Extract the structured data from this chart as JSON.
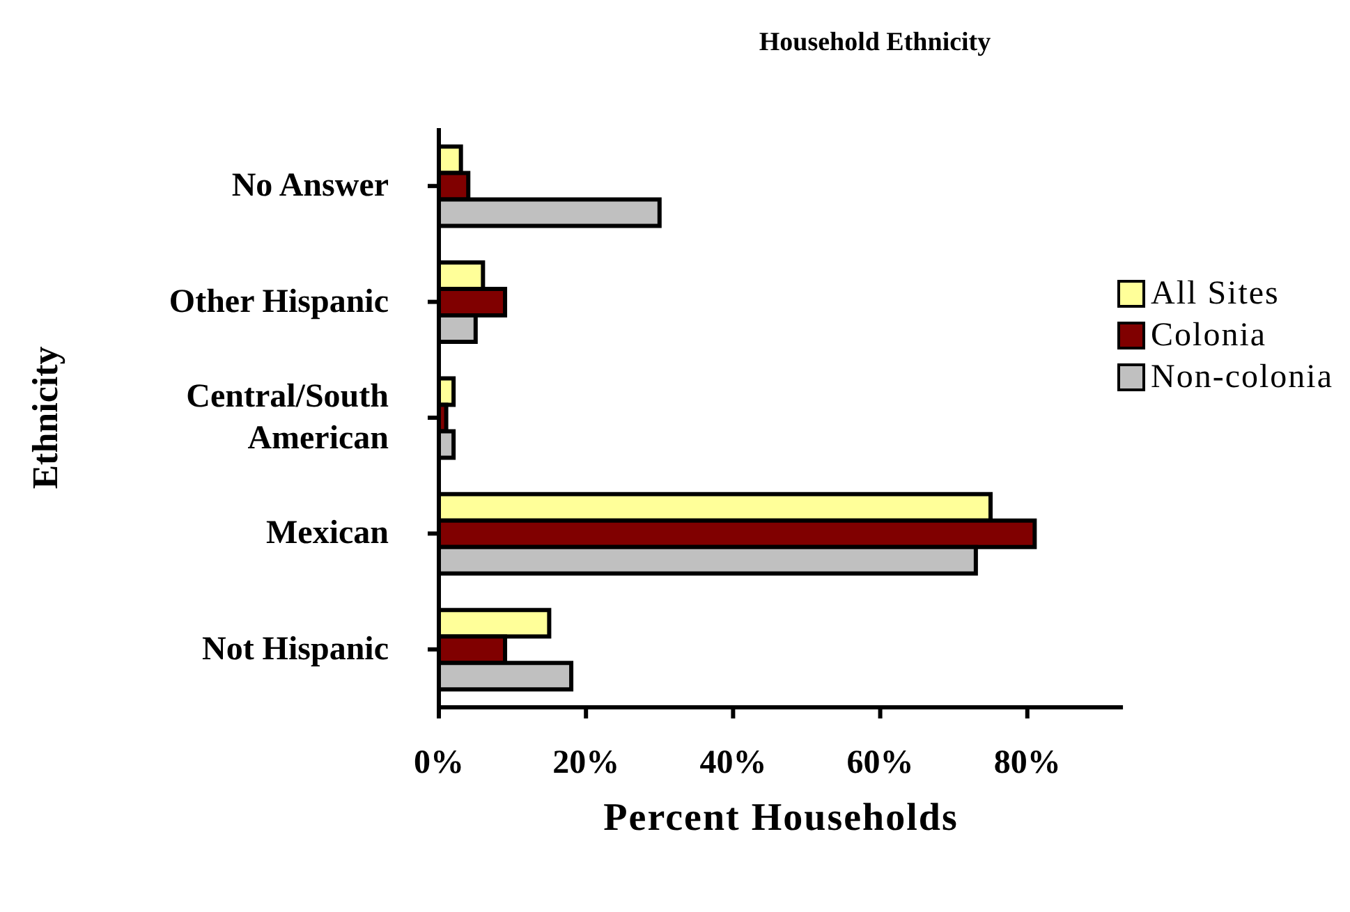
{
  "chart_data": {
    "type": "bar",
    "orientation": "horizontal",
    "title": "Household Ethnicity",
    "xlabel": "Percent  Households",
    "ylabel": "Ethnicity",
    "categories": [
      "No Answer",
      "Other Hispanic",
      "Central/South American",
      "Mexican",
      "Not Hispanic"
    ],
    "series": [
      {
        "name": "All Sites",
        "color": "#ffff99",
        "values": [
          3,
          6,
          2,
          75,
          15
        ]
      },
      {
        "name": "Colonia",
        "color": "#800000",
        "values": [
          4,
          9,
          1,
          81,
          9
        ]
      },
      {
        "name": "Non-colonia",
        "color": "#c0c0c0",
        "values": [
          30,
          5,
          2,
          73,
          18
        ]
      }
    ],
    "xlim": [
      0,
      93
    ],
    "xticks": [
      {
        "value": 0,
        "label": "0%"
      },
      {
        "value": 20,
        "label": "20%"
      },
      {
        "value": 40,
        "label": "40%"
      },
      {
        "value": 60,
        "label": "60%"
      },
      {
        "value": 80,
        "label": "80%"
      }
    ],
    "grid": false,
    "legend": "right"
  }
}
